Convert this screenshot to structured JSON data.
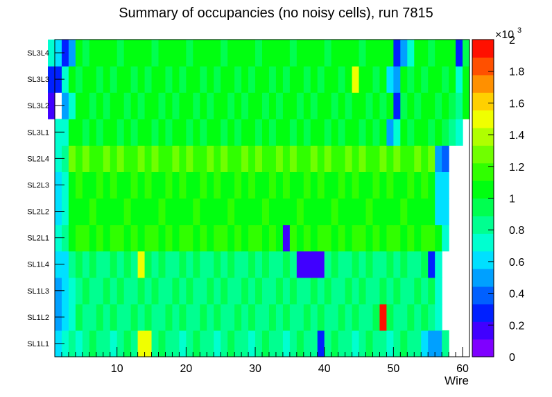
{
  "chart_data": {
    "type": "heatmap",
    "title": "Summary of occupancies (no noisy cells), run 7815",
    "xlabel": "Wire",
    "ylabel": "",
    "x_range": [
      1,
      61
    ],
    "x_ticks": [
      "10",
      "20",
      "30",
      "40",
      "50",
      "60"
    ],
    "y_categories": [
      "SL1L1",
      "SL1L2",
      "SL1L3",
      "SL1L4",
      "SL2L1",
      "SL2L2",
      "SL2L3",
      "SL2L4",
      "SL3L1",
      "SL3L2",
      "SL3L3",
      "SL3L4"
    ],
    "z_range": [
      0,
      2000
    ],
    "z_multiplier_label": "×10",
    "z_multiplier_exponent": "3",
    "z_ticks": [
      "0",
      "0.2",
      "0.4",
      "0.6",
      "0.8",
      "1",
      "1.2",
      "1.4",
      "1.6",
      "1.8",
      "2"
    ],
    "palette": [
      "#7f00ff",
      "#4000ff",
      "#0020ff",
      "#0060ff",
      "#00a0ff",
      "#00e0ff",
      "#00ffd0",
      "#00ff90",
      "#00ff50",
      "#00ff10",
      "#30ff00",
      "#70ff00",
      "#b0ff00",
      "#f0ff00",
      "#ffd000",
      "#ff9000",
      "#ff5000",
      "#ff1000"
    ],
    "rows": [
      {
        "name": "SL1L1",
        "base": 830,
        "start": 2,
        "end": 58,
        "specials": {
          "2": 600,
          "3": 700,
          "14": 1550,
          "15": 1480,
          "40": 250,
          "55": 600,
          "56": 550,
          "57": 520
        }
      },
      {
        "name": "SL1L2",
        "base": 870,
        "start": 2,
        "end": 57,
        "specials": {
          "2": 450,
          "3": 560,
          "4": 690,
          "49": 2000,
          "57": 680
        }
      },
      {
        "name": "SL1L3",
        "base": 880,
        "start": 2,
        "end": 57,
        "specials": {
          "2": 500,
          "3": 600,
          "4": 700,
          "57": 680
        }
      },
      {
        "name": "SL1L4",
        "base": 860,
        "start": 2,
        "end": 57,
        "specials": {
          "2": 560,
          "3": 640,
          "14": 1550,
          "37": 200,
          "38": 200,
          "39": 200,
          "40": 200,
          "56": 250,
          "57": 700
        }
      },
      {
        "name": "SL2L1",
        "base": 1130,
        "start": 2,
        "end": 58,
        "specials": {
          "2": 700,
          "3": 800,
          "35": 180,
          "58": 750
        }
      },
      {
        "name": "SL2L2",
        "base": 1080,
        "start": 2,
        "end": 58,
        "specials": {
          "2": 600,
          "3": 750,
          "57": 600,
          "58": 650
        }
      },
      {
        "name": "SL2L3",
        "base": 1100,
        "start": 2,
        "end": 58,
        "specials": {
          "2": 650,
          "3": 700,
          "57": 600,
          "58": 650
        }
      },
      {
        "name": "SL2L4",
        "base": 1200,
        "start": 2,
        "end": 58,
        "specials": {
          "2": 700,
          "3": 800,
          "57": 500,
          "58": 350
        }
      },
      {
        "name": "SL3L1",
        "base": 1000,
        "start": 2,
        "end": 60,
        "specials": {
          "2": 700,
          "3": 750,
          "50": 450,
          "51": 750,
          "59": 800,
          "60": 750
        }
      },
      {
        "name": "SL3L2",
        "base": 1020,
        "start": 1,
        "end": 61,
        "specials": {
          "1": 130,
          "2": 0,
          "3": 550,
          "4": 700,
          "51": 250,
          "60": 800
        }
      },
      {
        "name": "SL3L3",
        "base": 1020,
        "start": 1,
        "end": 61,
        "specials": {
          "1": 330,
          "2": 260,
          "3": 700,
          "45": 1450,
          "50": 600,
          "51": 450,
          "60": 750
        }
      },
      {
        "name": "SL3L4",
        "base": 1030,
        "start": 1,
        "end": 61,
        "specials": {
          "1": 750,
          "2": 620,
          "3": 290,
          "4": 500,
          "51": 260,
          "52": 550,
          "53": 700,
          "60": 250
        }
      }
    ]
  }
}
